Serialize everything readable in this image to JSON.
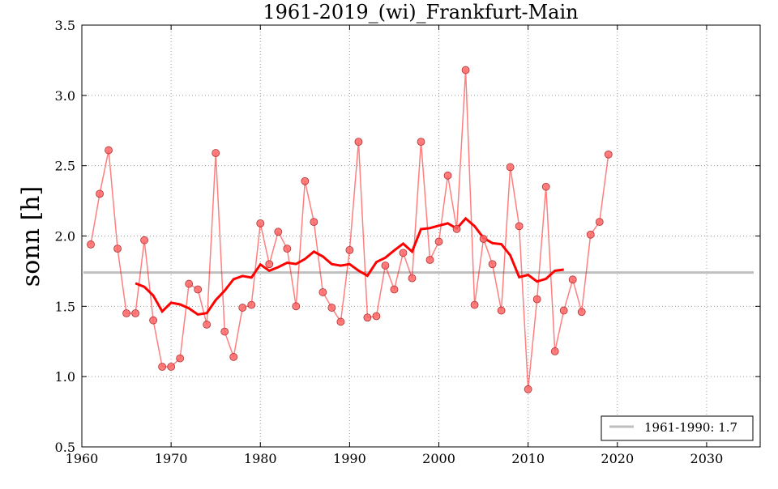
{
  "chart_data": {
    "type": "line",
    "title": "1961-2019_(wi)_Frankfurt-Main",
    "xlabel": "",
    "ylabel": "sonn [h]",
    "xlim": [
      1960,
      2036
    ],
    "ylim": [
      0.5,
      3.5
    ],
    "xticks": [
      "1960",
      "1970",
      "1980",
      "1990",
      "2000",
      "2010",
      "2020",
      "2030"
    ],
    "yticks": [
      "0.5",
      "1.0",
      "1.5",
      "2.0",
      "2.5",
      "3.0",
      "3.5"
    ],
    "grid": true,
    "legend": {
      "placement": "bottom-right",
      "entries": [
        "1961-1990: 1.7"
      ]
    },
    "baseline": {
      "name": "1961-1990: 1.7",
      "value": 1.74,
      "color": "#bfbfbf"
    },
    "colors": {
      "series": "#ff0000",
      "markers": "#ff6666",
      "moving_average": "#ff0000"
    },
    "moving_average_window": 11,
    "series": [
      {
        "name": "sonn",
        "x": [
          1961,
          1962,
          1963,
          1964,
          1965,
          1966,
          1967,
          1968,
          1969,
          1970,
          1971,
          1972,
          1973,
          1974,
          1975,
          1976,
          1977,
          1978,
          1979,
          1980,
          1981,
          1982,
          1983,
          1984,
          1985,
          1986,
          1987,
          1988,
          1989,
          1990,
          1991,
          1992,
          1993,
          1994,
          1995,
          1996,
          1997,
          1998,
          1999,
          2000,
          2001,
          2002,
          2003,
          2004,
          2005,
          2006,
          2007,
          2008,
          2009,
          2010,
          2011,
          2012,
          2013,
          2014,
          2015,
          2016,
          2017,
          2018,
          2019
        ],
        "values": [
          1.94,
          2.3,
          2.61,
          1.91,
          1.45,
          1.45,
          1.97,
          1.4,
          1.07,
          1.07,
          1.13,
          1.66,
          1.62,
          1.37,
          2.59,
          1.32,
          1.14,
          1.49,
          1.51,
          2.09,
          1.8,
          2.03,
          1.91,
          1.5,
          2.39,
          2.1,
          1.6,
          1.49,
          1.39,
          1.9,
          2.67,
          1.42,
          1.43,
          1.79,
          1.62,
          1.88,
          1.7,
          2.67,
          1.83,
          1.96,
          2.43,
          2.05,
          3.18,
          1.51,
          1.98,
          1.8,
          1.47,
          2.49,
          2.07,
          0.91,
          1.55,
          2.35,
          1.18,
          1.47,
          1.69,
          1.46,
          2.01,
          2.1,
          2.58
        ]
      }
    ]
  }
}
